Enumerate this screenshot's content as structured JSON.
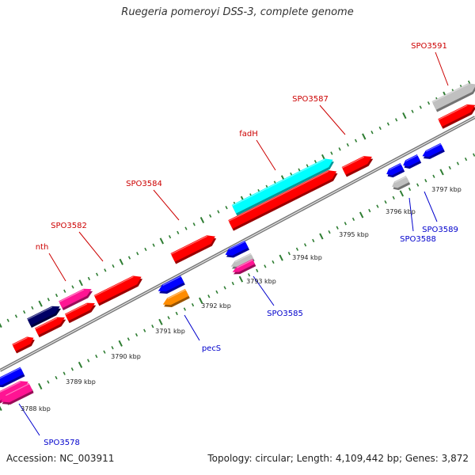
{
  "title": "Ruegeria pomeroyi DSS-3, complete genome",
  "footer": {
    "accession": "Accession: NC_003911",
    "summary": "Topology: circular; Length: 4,109,442 bp; Genes: 3,872"
  },
  "colors": {
    "top_label": "#cc0000",
    "bottom_label": "#0000cc",
    "backbone": "#888888",
    "tick": "#2e7d32"
  },
  "tick_labels": [
    "3788 kbp",
    "3789 kbp",
    "3790 kbp",
    "3791 kbp",
    "3792 kbp",
    "3793 kbp",
    "3794 kbp",
    "3795 kbp",
    "3796 kbp",
    "3797 kbp"
  ],
  "gene_labels_top": [
    "nth",
    "SPO3582",
    "SPO3584",
    "fadH",
    "SPO3587",
    "SPO3591"
  ],
  "gene_labels_bottom": [
    "SPO3578",
    "pecS",
    "SPO3585",
    "SPO3588",
    "SPO3589"
  ],
  "features": [
    {
      "color": "#ff0000",
      "strand": "forward"
    },
    {
      "color": "#ff1493",
      "strand": "forward"
    },
    {
      "color": "#000066",
      "strand": "forward"
    },
    {
      "color": "#ff0000",
      "strand": "forward"
    },
    {
      "color": "#ff0000",
      "strand": "forward"
    },
    {
      "color": "#ff1493",
      "strand": "forward"
    },
    {
      "color": "#ff0000",
      "strand": "forward"
    },
    {
      "color": "#ff0000",
      "strand": "forward"
    },
    {
      "color": "#00ffff",
      "strand": "forward"
    },
    {
      "color": "#ff0000",
      "strand": "forward"
    },
    {
      "color": "#ff0000",
      "strand": "forward"
    },
    {
      "color": "#c0c0c0",
      "strand": "forward"
    },
    {
      "color": "#ff0000",
      "strand": "forward"
    },
    {
      "color": "#0000ff",
      "strand": "reverse"
    },
    {
      "color": "#ff1493",
      "strand": "reverse"
    },
    {
      "color": "#ff8c00",
      "strand": "reverse"
    },
    {
      "color": "#0000ff",
      "strand": "reverse"
    },
    {
      "color": "#0000ff",
      "strand": "reverse"
    },
    {
      "color": "#c0c0c0",
      "strand": "reverse"
    },
    {
      "color": "#ff1493",
      "strand": "reverse"
    },
    {
      "color": "#0000ff",
      "strand": "reverse"
    },
    {
      "color": "#0000ff",
      "strand": "reverse"
    },
    {
      "color": "#0000ff",
      "strand": "reverse"
    },
    {
      "color": "#c0c0c0",
      "strand": "reverse"
    }
  ]
}
